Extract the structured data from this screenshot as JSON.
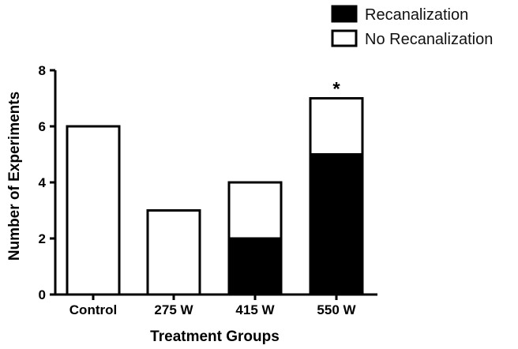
{
  "chart_data": {
    "type": "bar",
    "stacked": true,
    "categories": [
      "Control",
      "275 W",
      "415 W",
      "550 W"
    ],
    "series": [
      {
        "name": "Recanalization",
        "values": [
          0,
          0,
          2,
          5
        ],
        "color": "#000000"
      },
      {
        "name": "No Recanalization",
        "values": [
          6,
          3,
          2,
          2
        ],
        "color": "#ffffff"
      }
    ],
    "xlabel": "Treatment Groups",
    "ylabel": "Number of Experiments",
    "ylim": [
      0,
      8
    ],
    "yticks": [
      "0",
      "2",
      "4",
      "6",
      "8"
    ],
    "annotations": [
      {
        "category": "550 W",
        "text": "*"
      }
    ],
    "legend_position": "top-right",
    "grid": false
  }
}
